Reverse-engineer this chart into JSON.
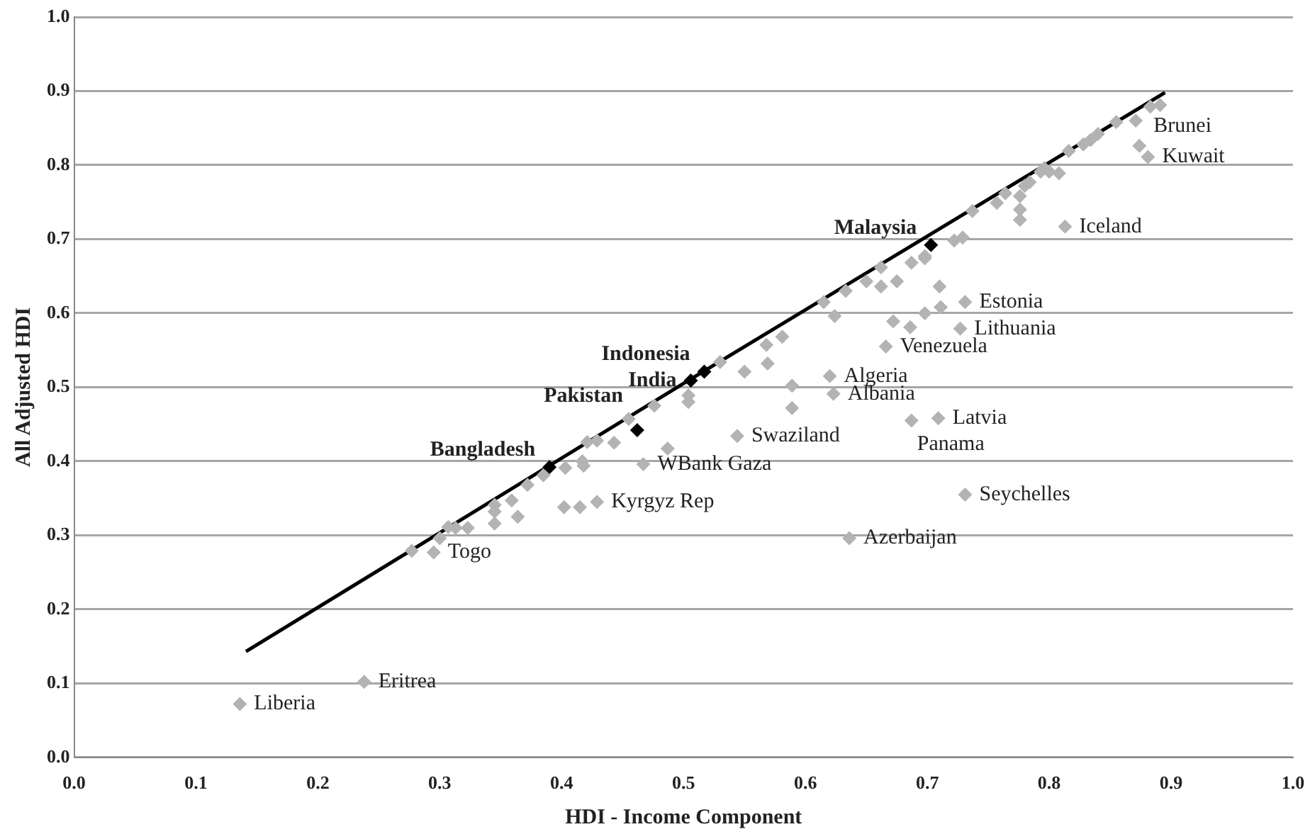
{
  "chart_data": {
    "type": "scatter",
    "xlabel": "HDI - Income Component",
    "ylabel": "All Adjusted HDI",
    "xlim": [
      0,
      1
    ],
    "xticks": [
      {
        "value": 0,
        "label": "0.0"
      },
      0.1,
      0.2,
      0.3,
      0.4,
      0.5,
      0.6,
      0.7,
      0.8,
      0.9,
      {
        "value": 1,
        "label": "1.0"
      }
    ],
    "ylim": [
      0,
      1
    ],
    "yticks": [
      {
        "value": 0,
        "label": "0.0"
      },
      0.1,
      0.2,
      0.3,
      0.4,
      0.5,
      0.6,
      0.7,
      0.8,
      0.9,
      {
        "value": 1,
        "label": "1.0"
      }
    ],
    "grid": "y",
    "legend": false,
    "marker": "diamond",
    "series": [
      {
        "color": "#b3b3b3",
        "x": [
          0.136,
          0.238,
          0.277,
          0.295,
          0.3,
          0.307,
          0.313,
          0.323,
          0.345,
          0.345,
          0.345,
          0.359,
          0.364,
          0.372,
          0.385,
          0.402,
          0.415,
          0.429,
          0.403,
          0.418,
          0.417,
          0.421,
          0.429,
          0.443,
          0.455,
          0.467,
          0.487,
          0.476,
          0.504,
          0.504,
          0.53,
          0.55,
          0.568,
          0.569,
          0.581,
          0.589,
          0.589,
          0.544,
          0.615,
          0.624,
          0.633,
          0.65,
          0.662,
          0.662,
          0.675,
          0.687,
          0.698,
          0.71,
          0.711,
          0.731,
          0.672,
          0.686,
          0.698,
          0.727,
          0.666,
          0.62,
          0.623,
          0.687,
          0.709,
          0.731,
          0.636,
          0.698,
          0.722,
          0.729,
          0.737,
          0.757,
          0.764,
          0.776,
          0.776,
          0.776,
          0.78,
          0.784,
          0.793,
          0.796,
          0.8,
          0.808,
          0.816,
          0.828,
          0.834,
          0.84,
          0.855,
          0.871,
          0.883,
          0.891,
          0.813,
          0.874,
          0.881
        ],
        "values": [
          0.072,
          0.102,
          0.279,
          0.277,
          0.296,
          0.311,
          0.31,
          0.31,
          0.341,
          0.332,
          0.316,
          0.347,
          0.325,
          0.368,
          0.381,
          0.338,
          0.338,
          0.345,
          0.391,
          0.394,
          0.4,
          0.426,
          0.428,
          0.425,
          0.457,
          0.396,
          0.417,
          0.475,
          0.489,
          0.48,
          0.534,
          0.521,
          0.557,
          0.532,
          0.568,
          0.502,
          0.472,
          0.434,
          0.615,
          0.596,
          0.63,
          0.643,
          0.662,
          0.636,
          0.643,
          0.668,
          0.674,
          0.636,
          0.608,
          0.615,
          0.589,
          0.581,
          0.6,
          0.579,
          0.555,
          0.515,
          0.491,
          0.455,
          0.458,
          0.355,
          0.296,
          0.677,
          0.698,
          0.702,
          0.738,
          0.749,
          0.762,
          0.758,
          0.726,
          0.74,
          0.772,
          0.777,
          0.791,
          0.796,
          0.791,
          0.789,
          0.819,
          0.828,
          0.834,
          0.842,
          0.858,
          0.86,
          0.879,
          0.881,
          0.717,
          0.826,
          0.811
        ]
      },
      {
        "color": "#000000",
        "x": [
          0.703,
          0.517,
          0.506,
          0.462,
          0.39
        ],
        "values": [
          0.692,
          0.521,
          0.509,
          0.442,
          0.392
        ]
      },
      {
        "type": "line",
        "color": "#000000",
        "marker": "none",
        "x": [
          0.141,
          0.5,
          0.895
        ],
        "values": [
          0.143,
          0.505,
          0.898
        ]
      }
    ],
    "annotations": [
      {
        "text": "Liberia",
        "x": 0.136,
        "y": 0.072
      },
      {
        "text": "Eritrea",
        "x": 0.238,
        "y": 0.102
      },
      {
        "text": "Togo",
        "x": 0.295,
        "y": 0.277
      },
      {
        "text": "Kyrgyz Rep",
        "x": 0.429,
        "y": 0.345
      },
      {
        "text": "WBank Gaza",
        "x": 0.467,
        "y": 0.396
      },
      {
        "text": "Swaziland",
        "x": 0.544,
        "y": 0.434
      },
      {
        "text": "Algeria",
        "x": 0.62,
        "y": 0.515
      },
      {
        "text": "Albania",
        "x": 0.623,
        "y": 0.491
      },
      {
        "text": "Venezuela",
        "x": 0.666,
        "y": 0.555
      },
      {
        "text": "Latvia",
        "x": 0.709,
        "y": 0.458
      },
      {
        "text": "Panama",
        "x": 0.687,
        "y": 0.455
      },
      {
        "text": "Estonia",
        "x": 0.731,
        "y": 0.615
      },
      {
        "text": "Lithuania",
        "x": 0.727,
        "y": 0.579
      },
      {
        "text": "Seychelles",
        "x": 0.731,
        "y": 0.355
      },
      {
        "text": "Azerbaijan",
        "x": 0.636,
        "y": 0.296
      },
      {
        "text": "Iceland",
        "x": 0.813,
        "y": 0.717
      },
      {
        "text": "Brunei",
        "x": 0.874,
        "y": 0.826
      },
      {
        "text": "Kuwait",
        "x": 0.881,
        "y": 0.811
      },
      {
        "text": "Malaysia",
        "x": 0.703,
        "y": 0.692
      },
      {
        "text": "Indonesia",
        "x": 0.517,
        "y": 0.521
      },
      {
        "text": "India",
        "x": 0.506,
        "y": 0.509
      },
      {
        "text": "Pakistan",
        "x": 0.462,
        "y": 0.442
      },
      {
        "text": "Bangladesh",
        "x": 0.39,
        "y": 0.392
      }
    ]
  }
}
